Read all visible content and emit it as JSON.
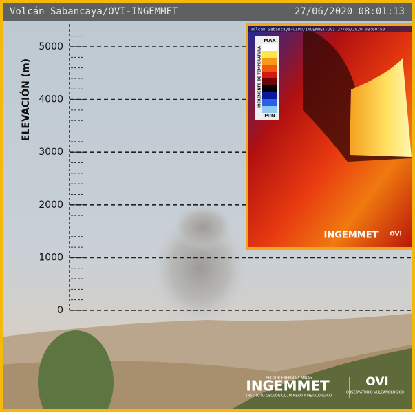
{
  "header": {
    "title": "Volcán Sabancaya/OVI-INGEMMET",
    "timestamp": "27/06/2020 08:01:13"
  },
  "elevation_scale": {
    "label": "ELEVACIÓN (m)",
    "ticks": [
      0,
      1000,
      2000,
      3000,
      4000,
      5000
    ],
    "minor_step": 200
  },
  "inset": {
    "caption": "Volcán Sabancaya-CIPD/INGEMMET-OVI  27/06/2020 08:00:50",
    "legend_title": "INCREMENTO DE TEMPERATURA",
    "max_label": "MAX",
    "min_label": "MIN",
    "logo": "INGEMMET",
    "logo2": "OVI"
  },
  "logos": {
    "sector": "SECTOR ENERGÍA Y MINAS",
    "ingemmet": "INGEMMET",
    "ingemmet_sub": "INSTITUTO GEOLÓGICO, MINERO Y METALÚRGICO",
    "ovi": "OVI",
    "ovi_sub": "OBSERVATORIO VULCANOLÓGICO"
  }
}
